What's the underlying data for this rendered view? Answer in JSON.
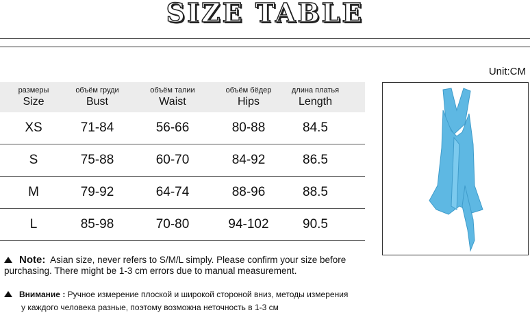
{
  "title": "SIZE TABLE",
  "unit": "Unit:CM",
  "headers": [
    {
      "ru": "размеры",
      "en": "Size"
    },
    {
      "ru": "объём груди",
      "en": "Bust"
    },
    {
      "ru": "объём талии",
      "en": "Waist"
    },
    {
      "ru": "объём бёдер",
      "en": "Hips"
    },
    {
      "ru": "длина платья",
      "en": "Length"
    }
  ],
  "rows": [
    [
      "XS",
      "71-84",
      "56-66",
      "80-88",
      "84.5"
    ],
    [
      "S",
      "75-88",
      "60-70",
      "84-92",
      "86.5"
    ],
    [
      "M",
      "79-92",
      "64-74",
      "88-96",
      "88.5"
    ],
    [
      "L",
      "85-98",
      "70-80",
      "94-102",
      "90.5"
    ]
  ],
  "note": {
    "label": "Note:",
    "text": "Asian size, never refers to S/M/L simply. Please confirm your size before",
    "text2": "purchasing. There might be 1-3 cm errors due to manual measurement."
  },
  "note_ru": {
    "label": "Внимание :",
    "text": "Ручное измерение плоской и широкой стороной вниз, методы измерения",
    "text2": "у каждого человека разные, поэтому возможна неточность в 1-3 см"
  },
  "colors": {
    "dress": "#5eb8e3",
    "header_bg": "#ececec"
  }
}
